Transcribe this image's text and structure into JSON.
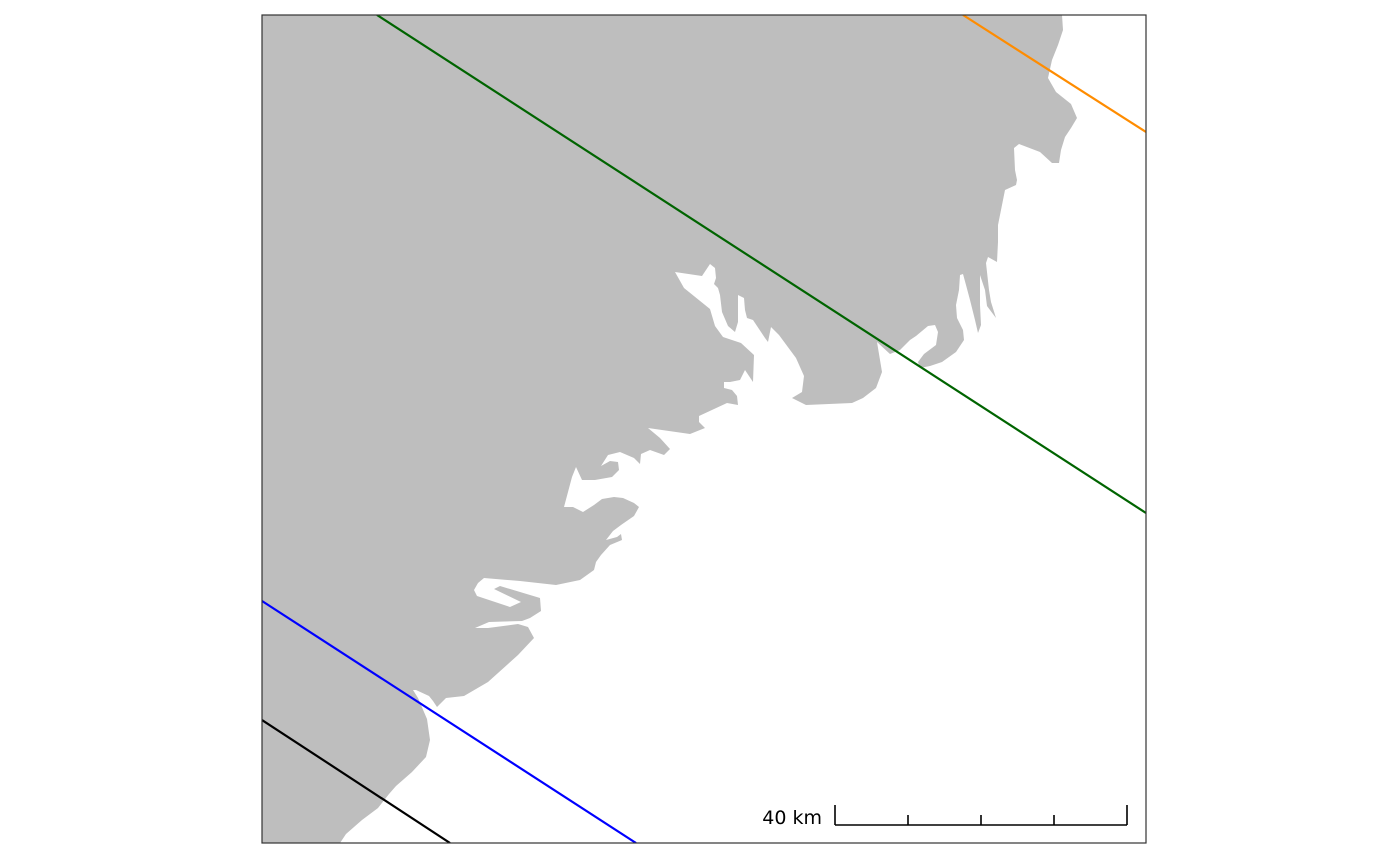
{
  "map": {
    "land_color": "#bebebe",
    "water_color": "#ffffff",
    "frame_color": "#333333",
    "tracks": [
      {
        "id": "track-orange",
        "color": "#ff8c00"
      },
      {
        "id": "track-green",
        "color": "#006400"
      },
      {
        "id": "track-blue",
        "color": "#0000ff"
      },
      {
        "id": "track-black",
        "color": "#000000"
      }
    ],
    "scale_bar": {
      "label": "40 km",
      "segments": 4
    }
  }
}
